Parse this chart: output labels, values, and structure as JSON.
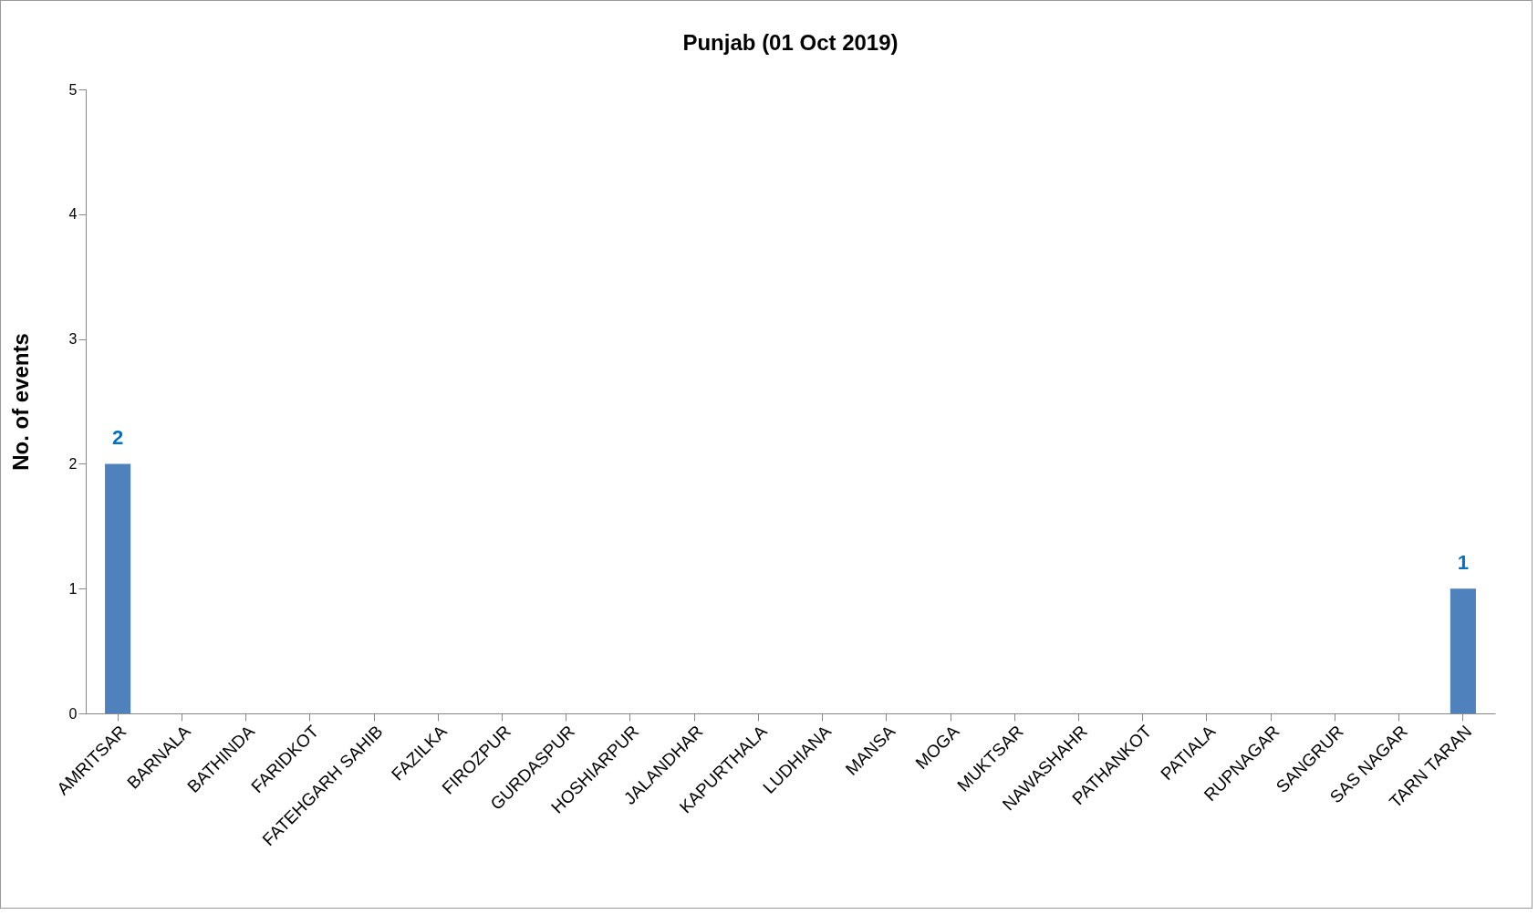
{
  "chart_data": {
    "type": "bar",
    "title": "Punjab (01 Oct 2019)",
    "ylabel": "No. of events",
    "categories": [
      "AMRITSAR",
      "BARNALA",
      "BATHINDA",
      "FARIDKOT",
      "FATEHGARH SAHIB",
      "FAZILKA",
      "FIROZPUR",
      "GURDASPUR",
      "HOSHIARPUR",
      "JALANDHAR",
      "KAPURTHALA",
      "LUDHIANA",
      "MANSA",
      "MOGA",
      "MUKTSAR",
      "NAWASHAHR",
      "PATHANKOT",
      "PATIALA",
      "RUPNAGAR",
      "SANGRUR",
      "SAS NAGAR",
      "TARN TARAN"
    ],
    "values": [
      2,
      0,
      0,
      0,
      0,
      0,
      0,
      0,
      0,
      0,
      0,
      0,
      0,
      0,
      0,
      0,
      0,
      0,
      0,
      0,
      0,
      1
    ],
    "value_labels": [
      "2",
      null,
      null,
      null,
      null,
      null,
      null,
      null,
      null,
      null,
      null,
      null,
      null,
      null,
      null,
      null,
      null,
      null,
      null,
      null,
      null,
      "1"
    ],
    "color": "#4f81bd",
    "ylim": [
      0,
      5
    ],
    "yticks": [
      0,
      1,
      2,
      3,
      4,
      5
    ],
    "grid": false
  }
}
